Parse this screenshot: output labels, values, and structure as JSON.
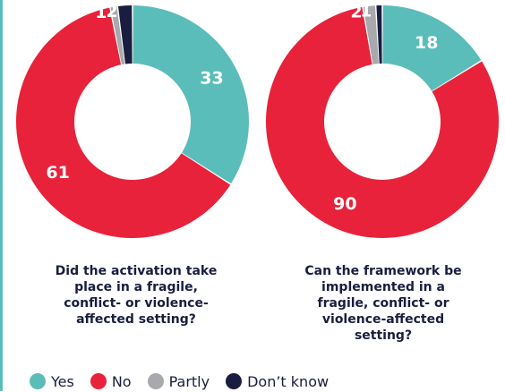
{
  "colors": {
    "yes": "#5bbdba",
    "no": "#e8223a",
    "partly": "#a7a9ac",
    "dont_know": "#1a1d3f",
    "text": "#1a1d3f"
  },
  "legend": [
    {
      "label": "Yes",
      "color": "#5bbdba"
    },
    {
      "label": "No",
      "color": "#e8223a"
    },
    {
      "label": "Partly",
      "color": "#a7a9ac"
    },
    {
      "label": "Don’t know",
      "color": "#1a1d3f"
    }
  ],
  "chart_data": [
    {
      "type": "pie",
      "title": "Did the activation take place in a fragile, conflict- or violence-affected setting?",
      "categories": [
        "Yes",
        "No",
        "Partly",
        "Don’t know"
      ],
      "values": [
        33,
        61,
        1,
        2
      ],
      "labels": [
        "33",
        "61",
        "1",
        "2"
      ],
      "colors": [
        "#5bbdba",
        "#e8223a",
        "#a7a9ac",
        "#1a1d3f"
      ],
      "legend": "bottom"
    },
    {
      "type": "pie",
      "title": "Can the framework be implemented in a fragile, conflict- or violence-affected setting?",
      "categories": [
        "Yes",
        "No",
        "Partly",
        "Don’t know"
      ],
      "values": [
        18,
        90,
        2,
        1
      ],
      "labels": [
        "18",
        "90",
        "2",
        "1"
      ],
      "colors": [
        "#5bbdba",
        "#e8223a",
        "#a7a9ac",
        "#1a1d3f"
      ],
      "legend": "bottom"
    }
  ]
}
